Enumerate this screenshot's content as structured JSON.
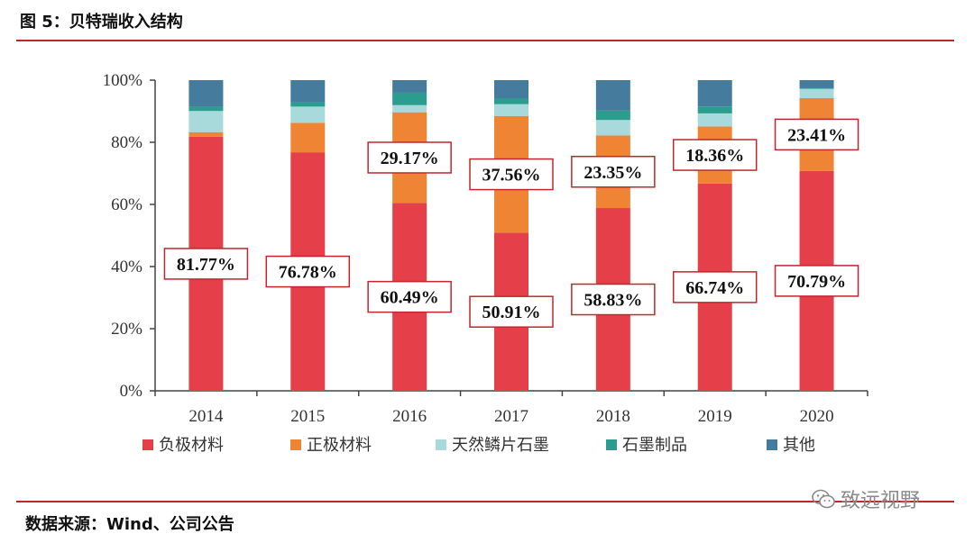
{
  "figure_title": "图 5：贝特瑞收入结构",
  "source_note": "数据来源：Wind、公司公告",
  "watermark": "致远视野",
  "colors": {
    "accent": "#c0272d",
    "negative_material": "#e5404a",
    "positive_material": "#ef8434",
    "natural_graphite": "#a8dadc",
    "graphite_products": "#2a9d8f",
    "other": "#457b9d"
  },
  "chart_data": {
    "type": "bar",
    "stacked": true,
    "percent": true,
    "categories": [
      "2014",
      "2015",
      "2016",
      "2017",
      "2018",
      "2019",
      "2020"
    ],
    "ylim": [
      0,
      100
    ],
    "yticks": [
      "0%",
      "20%",
      "40%",
      "60%",
      "80%",
      "100%"
    ],
    "series": [
      {
        "name": "负极材料",
        "values": [
          81.77,
          76.78,
          60.49,
          50.91,
          58.83,
          66.74,
          70.79
        ]
      },
      {
        "name": "正极材料",
        "values": [
          1.5,
          9.5,
          29.17,
          37.56,
          23.35,
          18.36,
          23.41
        ]
      },
      {
        "name": "天然鳞片石墨",
        "values": [
          6.8,
          5.2,
          2.3,
          3.8,
          5.0,
          4.2,
          3.0
        ]
      },
      {
        "name": "石墨制品",
        "values": [
          1.4,
          1.4,
          4.0,
          1.8,
          3.0,
          2.2,
          0.2
        ]
      },
      {
        "name": "其他",
        "values": [
          8.53,
          7.12,
          4.04,
          5.93,
          9.82,
          8.5,
          2.6
        ]
      }
    ],
    "data_labels": {
      "负极材料": [
        "81.77%",
        "76.78%",
        "60.49%",
        "50.91%",
        "58.83%",
        "66.74%",
        "70.79%"
      ],
      "正极材料": [
        "",
        "",
        "29.17%",
        "37.56%",
        "23.35%",
        "18.36%",
        "23.41%"
      ]
    },
    "legend_position": "bottom",
    "grid": false
  }
}
